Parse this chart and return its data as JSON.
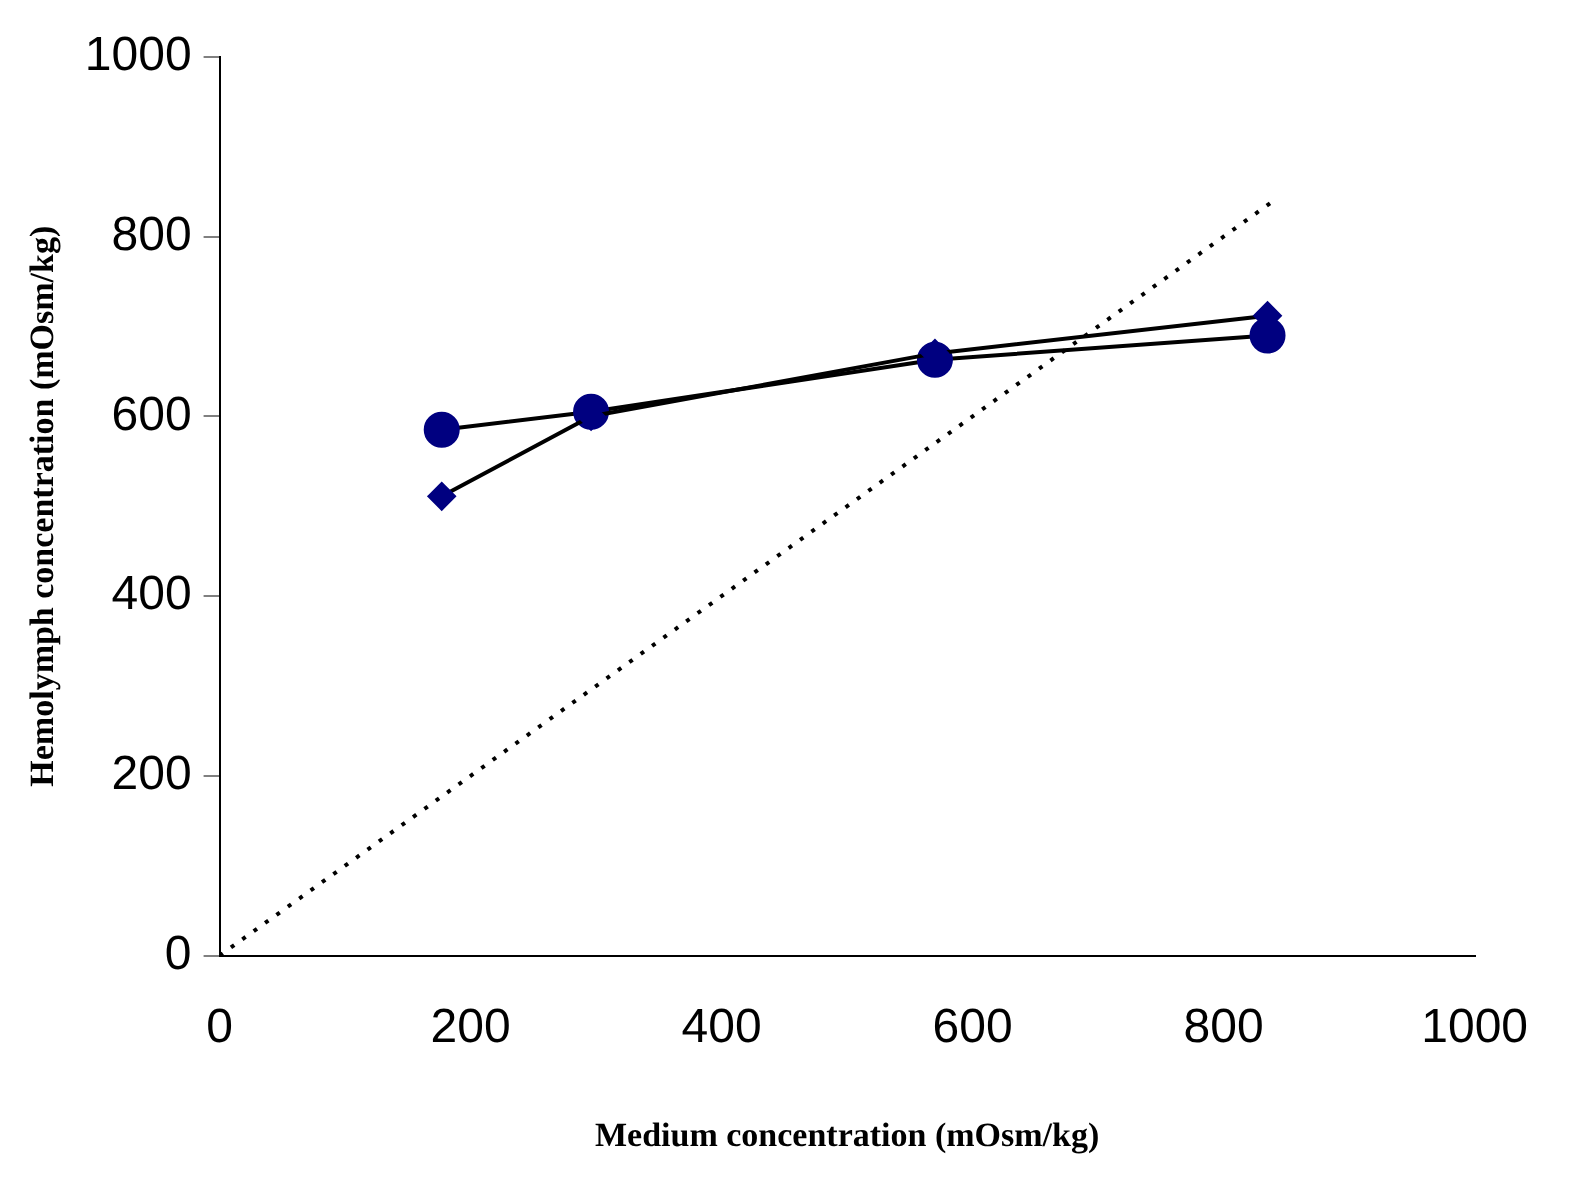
{
  "chart_data": {
    "type": "line",
    "xlabel": "Medium concentration (mOsm/kg)",
    "ylabel": "Hemolymph concentration (mOsm/kg)",
    "xlim": [
      0,
      1000
    ],
    "xticks": [
      0,
      200,
      400,
      600,
      800,
      1000
    ],
    "ylim": [
      0,
      1000
    ],
    "yticks": [
      0,
      200,
      400,
      600,
      800,
      1000
    ],
    "grid": false,
    "legend": false,
    "series": [
      {
        "color": "#000080",
        "marker": "diamond",
        "x": [
          177,
          296,
          570,
          835
        ],
        "values": [
          511,
          600,
          670,
          712
        ]
      },
      {
        "color": "#000080",
        "marker": "circle",
        "x": [
          177,
          296,
          570,
          835
        ],
        "values": [
          585,
          605,
          663,
          690
        ]
      },
      {
        "color": "#000000",
        "marker": "none",
        "line_style": "dotted",
        "x": [
          0,
          840
        ],
        "values": [
          0,
          840
        ]
      }
    ]
  }
}
